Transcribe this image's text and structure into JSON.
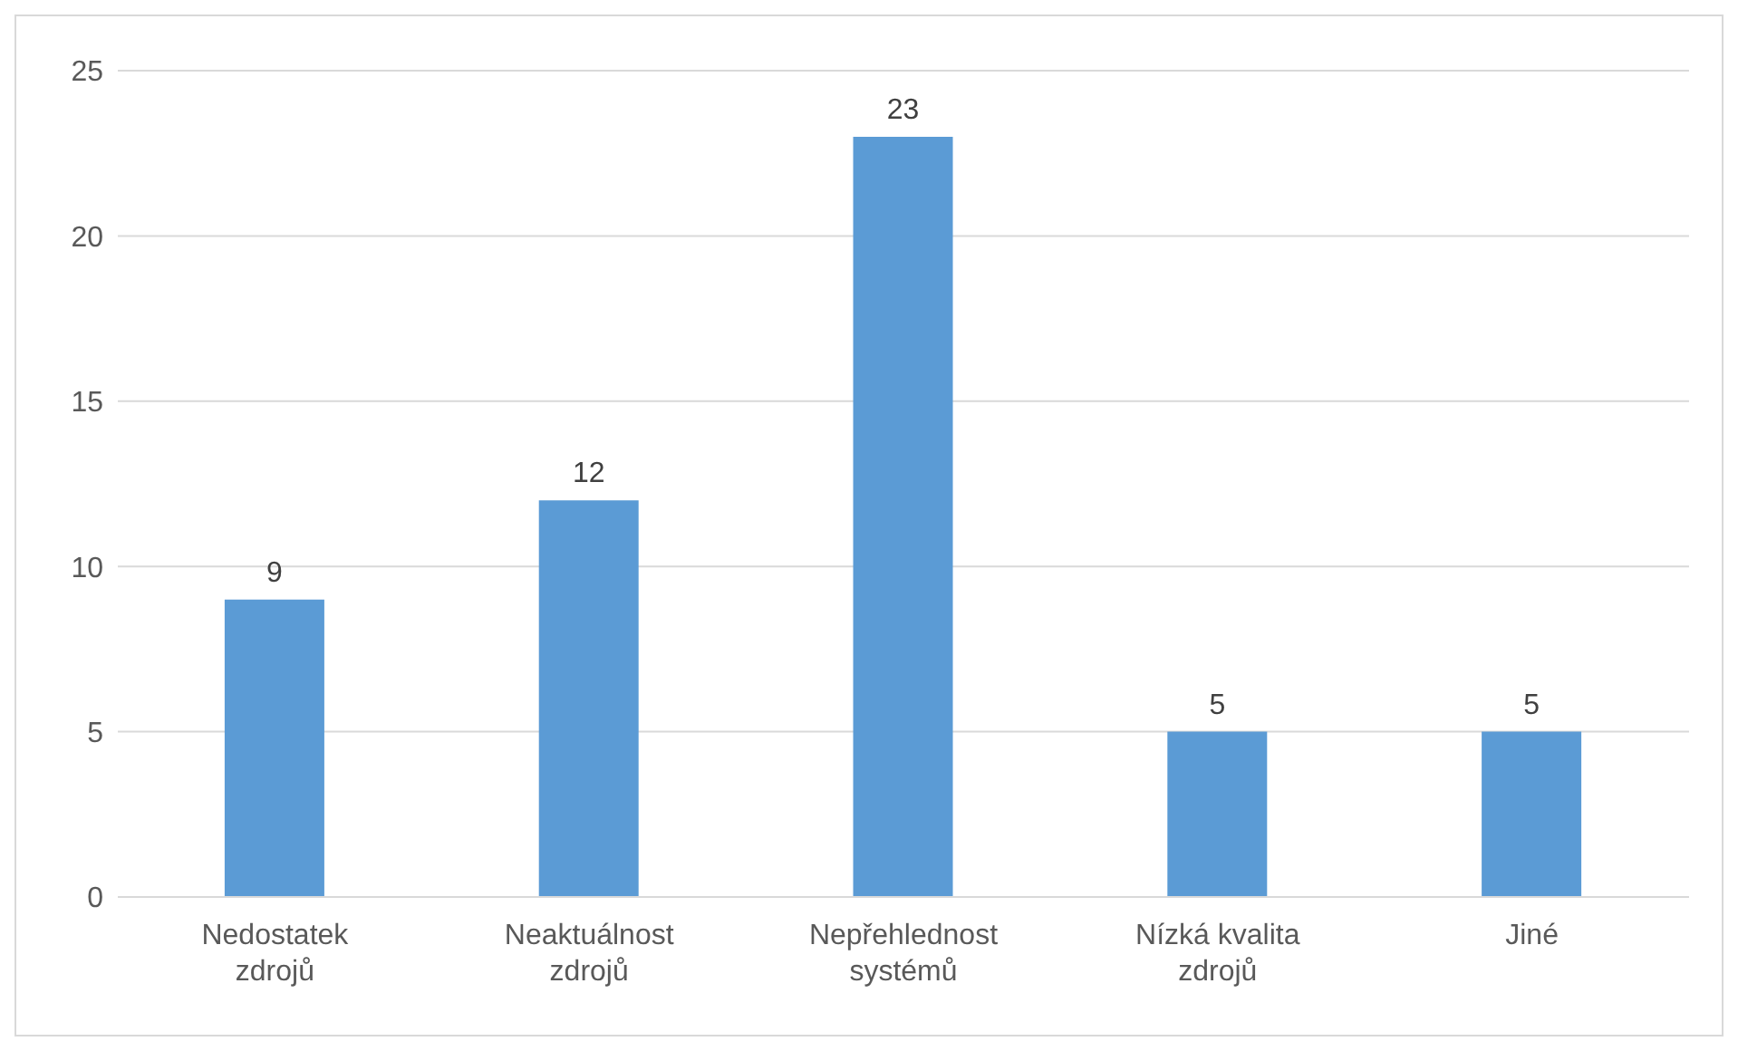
{
  "chart_data": {
    "type": "bar",
    "categories": [
      "Nedostatek zdrojů",
      "Neaktuálnost zdrojů",
      "Nepřehlednost systémů",
      "Nízká kvalita zdrojů",
      "Jiné"
    ],
    "values": [
      9,
      12,
      23,
      5,
      5
    ],
    "color": "#5b9bd5",
    "ylim": [
      0,
      25
    ],
    "yticks": [
      0,
      5,
      10,
      15,
      20,
      25
    ],
    "grid": "y",
    "data_labels": true
  }
}
